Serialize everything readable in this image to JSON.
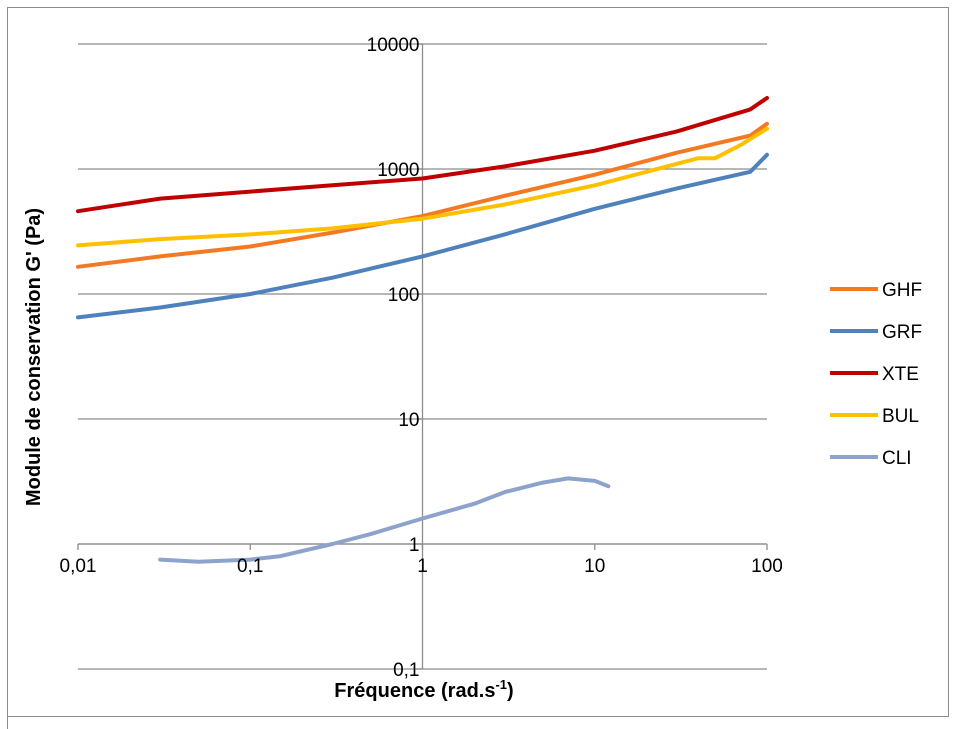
{
  "chart_data": {
    "type": "line",
    "xlabel_main": "Fréquence (rad.s",
    "xlabel_sup": "-1",
    "xlabel_end": ")",
    "ylabel": "Module de conservation G' (Pa)",
    "x_scale": "log",
    "y_scale": "log",
    "xlim": [
      0.01,
      100
    ],
    "ylim": [
      0.1,
      10000
    ],
    "x_ticks": [
      0.01,
      0.1,
      1,
      10,
      100
    ],
    "x_tick_labels": [
      "0,01",
      "0,1",
      "1",
      "10",
      "100"
    ],
    "y_ticks": [
      0.1,
      1,
      10,
      100,
      1000,
      10000
    ],
    "y_tick_labels": [
      "0,1",
      "1",
      "10",
      "100",
      "1000",
      "10000"
    ],
    "grid": "horizontal",
    "legend": "right",
    "series": [
      {
        "name": "GHF",
        "color": "#F47920",
        "x": [
          0.01,
          0.03,
          0.1,
          0.3,
          1,
          3,
          10,
          30,
          80,
          100
        ],
        "y": [
          165,
          200,
          240,
          310,
          420,
          610,
          900,
          1350,
          1850,
          2300
        ]
      },
      {
        "name": "GRF",
        "color": "#4F81BD",
        "x": [
          0.01,
          0.03,
          0.1,
          0.3,
          1,
          3,
          10,
          30,
          80,
          100
        ],
        "y": [
          65,
          78,
          100,
          135,
          200,
          300,
          480,
          700,
          950,
          1300
        ]
      },
      {
        "name": "XTE",
        "color": "#C00000",
        "x": [
          0.01,
          0.03,
          0.1,
          0.3,
          1,
          3,
          10,
          30,
          80,
          100
        ],
        "y": [
          460,
          580,
          660,
          740,
          840,
          1050,
          1400,
          2000,
          3000,
          3700
        ]
      },
      {
        "name": "BUL",
        "color": "#FFC000",
        "x": [
          0.01,
          0.03,
          0.1,
          0.3,
          1,
          3,
          10,
          30,
          40,
          50,
          70,
          100
        ],
        "y": [
          245,
          275,
          300,
          335,
          400,
          520,
          740,
          1100,
          1220,
          1220,
          1550,
          2100
        ]
      },
      {
        "name": "CLI",
        "color": "#8EA3CC",
        "x": [
          0.03,
          0.05,
          0.1,
          0.15,
          0.3,
          0.5,
          1,
          2,
          3,
          5,
          7,
          10,
          12
        ],
        "y": [
          0.75,
          0.72,
          0.75,
          0.8,
          1.0,
          1.2,
          1.6,
          2.1,
          2.6,
          3.1,
          3.35,
          3.2,
          2.9
        ]
      }
    ]
  }
}
